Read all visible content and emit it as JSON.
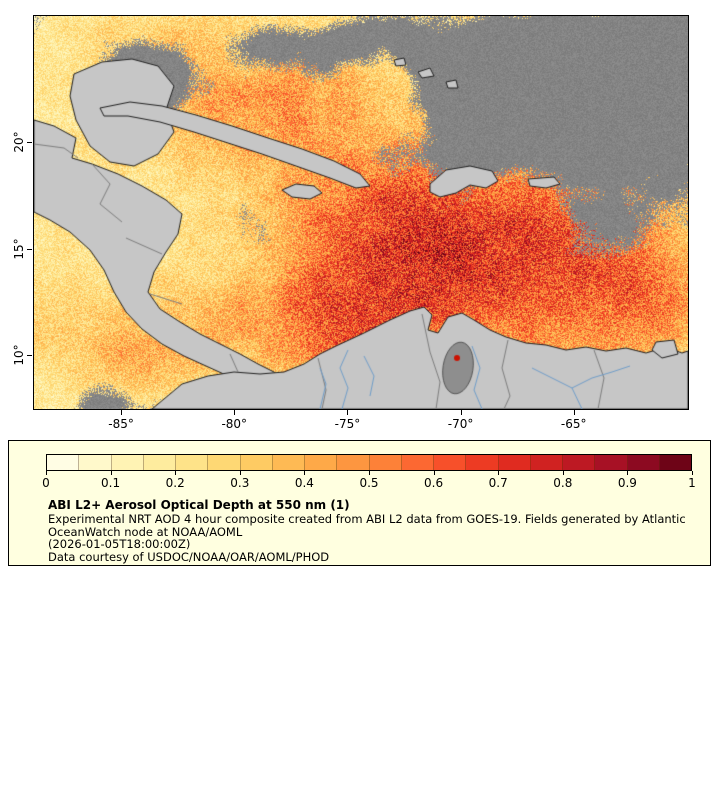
{
  "map": {
    "land_color": "#c6c6c6",
    "coast_color": "#1f1f1f",
    "nodata_color": "#8e8e8e",
    "border_color": "#7d7d7d",
    "river_color": "#6f9dc9",
    "hotspot_color": "#cc1100",
    "x_axis": {
      "lon_min": -88.85,
      "lon_max": -59.95,
      "ticks": [
        {
          "label": "-85°",
          "lon": -85
        },
        {
          "label": "-80°",
          "lon": -80
        },
        {
          "label": "-75°",
          "lon": -75
        },
        {
          "label": "-70°",
          "lon": -70
        },
        {
          "label": "-65°",
          "lon": -65
        }
      ]
    },
    "y_axis": {
      "lat_min": 7.45,
      "lat_max": 25.95,
      "ticks": [
        {
          "label": "20°",
          "lat": 20
        },
        {
          "label": "15°",
          "lat": 15
        },
        {
          "label": "10°",
          "lat": 10
        }
      ]
    }
  },
  "colorbar": {
    "min": 0,
    "max": 1,
    "segments": 20,
    "tick_labels": [
      "0",
      "0.1",
      "0.2",
      "0.3",
      "0.4",
      "0.5",
      "0.6",
      "0.7",
      "0.8",
      "0.9",
      "1"
    ],
    "stops": [
      {
        "v": 0.0,
        "c": "#fffff0"
      },
      {
        "v": 0.1,
        "c": "#fff7bf"
      },
      {
        "v": 0.2,
        "c": "#fee893"
      },
      {
        "v": 0.3,
        "c": "#fed36a"
      },
      {
        "v": 0.4,
        "c": "#feb24c"
      },
      {
        "v": 0.5,
        "c": "#fd8d3c"
      },
      {
        "v": 0.6,
        "c": "#fc5b2e"
      },
      {
        "v": 0.7,
        "c": "#e8301f"
      },
      {
        "v": 0.8,
        "c": "#c81d22"
      },
      {
        "v": 0.9,
        "c": "#9c0d26"
      },
      {
        "v": 1.0,
        "c": "#5e0112"
      }
    ]
  },
  "legend": {
    "background": "#ffffe0",
    "title": "ABI L2+ Aerosol Optical Depth at 550 nm (1)",
    "lines": [
      "Experimental NRT AOD 4 hour composite created from ABI L2 data from GOES-19. Fields generated by Atlantic",
      "OceanWatch node at NOAA/AOML",
      "(2026-01-05T18:00:00Z)",
      "Data courtesy of USDOC/NOAA/OAR/AOML/PHOD"
    ]
  }
}
